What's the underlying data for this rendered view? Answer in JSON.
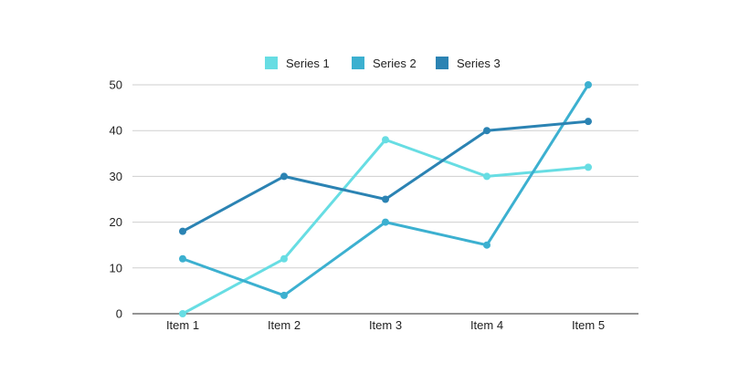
{
  "chart_data": {
    "type": "line",
    "categories": [
      "Item 1",
      "Item 2",
      "Item 3",
      "Item 4",
      "Item 5"
    ],
    "series": [
      {
        "name": "Series 1",
        "color": "#67dde3",
        "values": [
          0,
          12,
          38,
          30,
          32
        ]
      },
      {
        "name": "Series 2",
        "color": "#3cb0d0",
        "values": [
          12,
          4,
          20,
          15,
          50
        ]
      },
      {
        "name": "Series 3",
        "color": "#2b83b3",
        "values": [
          18,
          30,
          25,
          40,
          42
        ]
      }
    ],
    "ylim": [
      0,
      50
    ],
    "yticks": [
      0,
      10,
      20,
      30,
      40,
      50
    ],
    "grid": true,
    "legend": "top-center",
    "title": "",
    "xlabel": "",
    "ylabel": ""
  }
}
